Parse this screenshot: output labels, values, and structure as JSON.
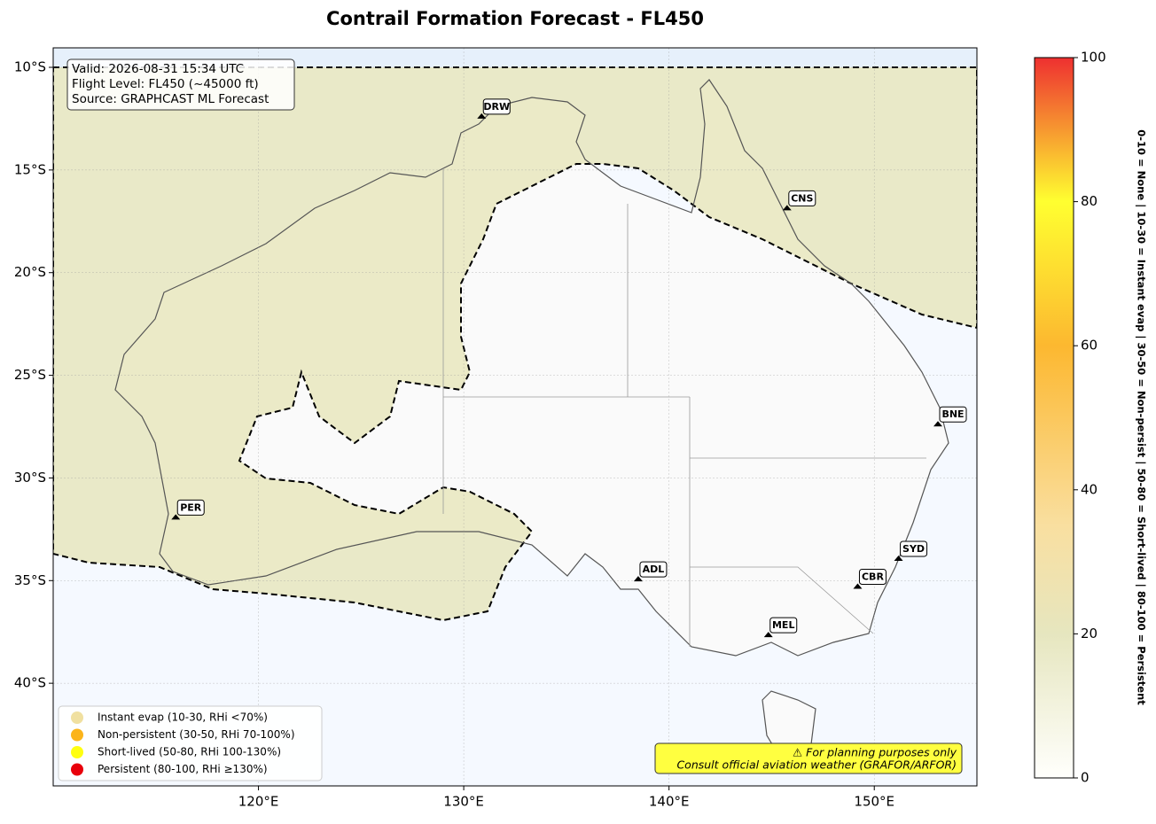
{
  "map": {
    "title": "Contrail Formation Forecast - FL450",
    "xlim": [
      110,
      155
    ],
    "ylim": [
      -45,
      -9.05
    ],
    "xticks": [
      {
        "value": 120,
        "label": "120°E"
      },
      {
        "value": 130,
        "label": "130°E"
      },
      {
        "value": 140,
        "label": "140°E"
      },
      {
        "value": 150,
        "label": "150°E"
      }
    ],
    "yticks": [
      {
        "value": -10,
        "label": "10°S"
      },
      {
        "value": -15,
        "label": "15°S"
      },
      {
        "value": -20,
        "label": "20°S"
      },
      {
        "value": -25,
        "label": "25°S"
      },
      {
        "value": -30,
        "label": "30°S"
      },
      {
        "value": -35,
        "label": "35°S"
      },
      {
        "value": -40,
        "label": "40°S"
      }
    ],
    "grid": true,
    "info": [
      "Valid: 2026-08-31 15:34 UTC",
      "Flight Level: FL450 (~45000 ft)",
      "Source: GRAPHCAST ML Forecast"
    ],
    "airports": [
      {
        "label": "DRW",
        "lon": 130.87,
        "lat": -12.41
      },
      {
        "label": "CNS",
        "lon": 145.75,
        "lat": -16.88
      },
      {
        "label": "BNE",
        "lon": 153.1,
        "lat": -27.4
      },
      {
        "label": "PER",
        "lon": 115.97,
        "lat": -31.94
      },
      {
        "label": "ADL",
        "lon": 138.5,
        "lat": -34.95
      },
      {
        "label": "SYD",
        "lon": 151.18,
        "lat": -33.95
      },
      {
        "label": "CBR",
        "lon": 149.19,
        "lat": -35.31
      },
      {
        "label": "MEL",
        "lon": 144.84,
        "lat": -37.67
      }
    ],
    "legend": [
      {
        "name": "Instant evap (10-30, RHi <70%)",
        "color": "#f0e0a0"
      },
      {
        "name": "Non-persistent (30-50, RHi 70-100%)",
        "color": "#fbb41a"
      },
      {
        "name": "Short-lived (50-80, RHi 100-130%)",
        "color": "#ffff10"
      },
      {
        "name": "Persistent (80-100, RHi ≥130%)",
        "color": "#e8000b"
      }
    ],
    "warning": [
      "⚠ For planning purposes only",
      "Consult official aviation weather (GRAFOR/ARFOR)"
    ],
    "colorbar": {
      "lim": [
        0,
        100
      ],
      "ticks": [
        0,
        20,
        40,
        60,
        80,
        100
      ],
      "label": "0-10 = None  |  10-30 = Instant evap  |  30-50 = Non-persist  |  50-80 = Short-lived  |  80-100 = Persistent"
    }
  }
}
